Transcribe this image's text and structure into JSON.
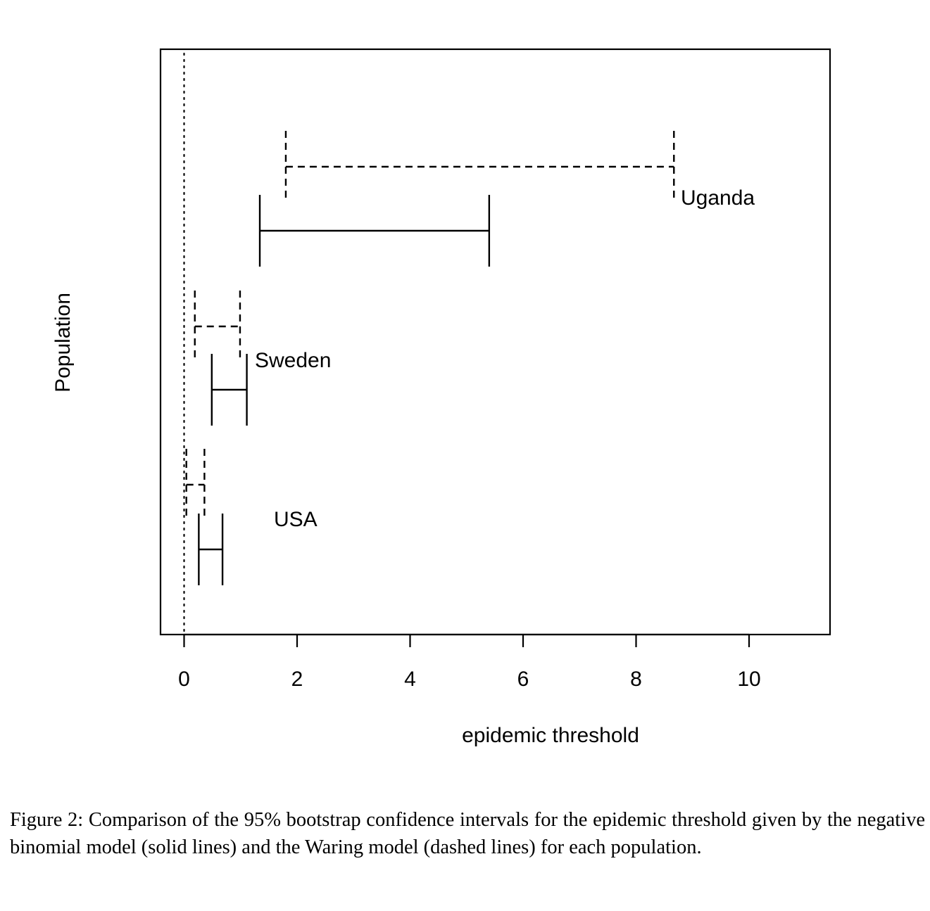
{
  "chart_data": {
    "type": "interval",
    "xlabel": "epidemic threshold",
    "ylabel": "Population",
    "xlim": [
      -0.4,
      11.45
    ],
    "xticks": [
      0,
      2,
      4,
      6,
      8,
      10
    ],
    "xtick_labels": [
      "0",
      "2",
      "4",
      "6",
      "8",
      "10"
    ],
    "reference_line": {
      "x": 0,
      "style": "dotted"
    },
    "series": [
      {
        "name": "negative binomial model",
        "style": "solid",
        "intervals": [
          {
            "population": "USA",
            "lower": 0.26,
            "upper": 0.68
          },
          {
            "population": "Sweden",
            "lower": 0.49,
            "upper": 1.11
          },
          {
            "population": "Uganda",
            "lower": 1.34,
            "upper": 5.4
          }
        ]
      },
      {
        "name": "Waring model",
        "style": "dashed",
        "intervals": [
          {
            "population": "USA",
            "lower": 0.04,
            "upper": 0.36
          },
          {
            "population": "Sweden",
            "lower": 0.19,
            "upper": 0.99
          },
          {
            "population": "Uganda",
            "lower": 1.8,
            "upper": 8.67
          }
        ]
      }
    ],
    "population_labels": [
      "USA",
      "Sweden",
      "Uganda"
    ]
  },
  "caption": "Figure 2: Comparison of the 95% bootstrap confidence intervals for the epidemic threshold given by the negative binomial model (solid lines) and the Waring model (dashed lines) for each population."
}
